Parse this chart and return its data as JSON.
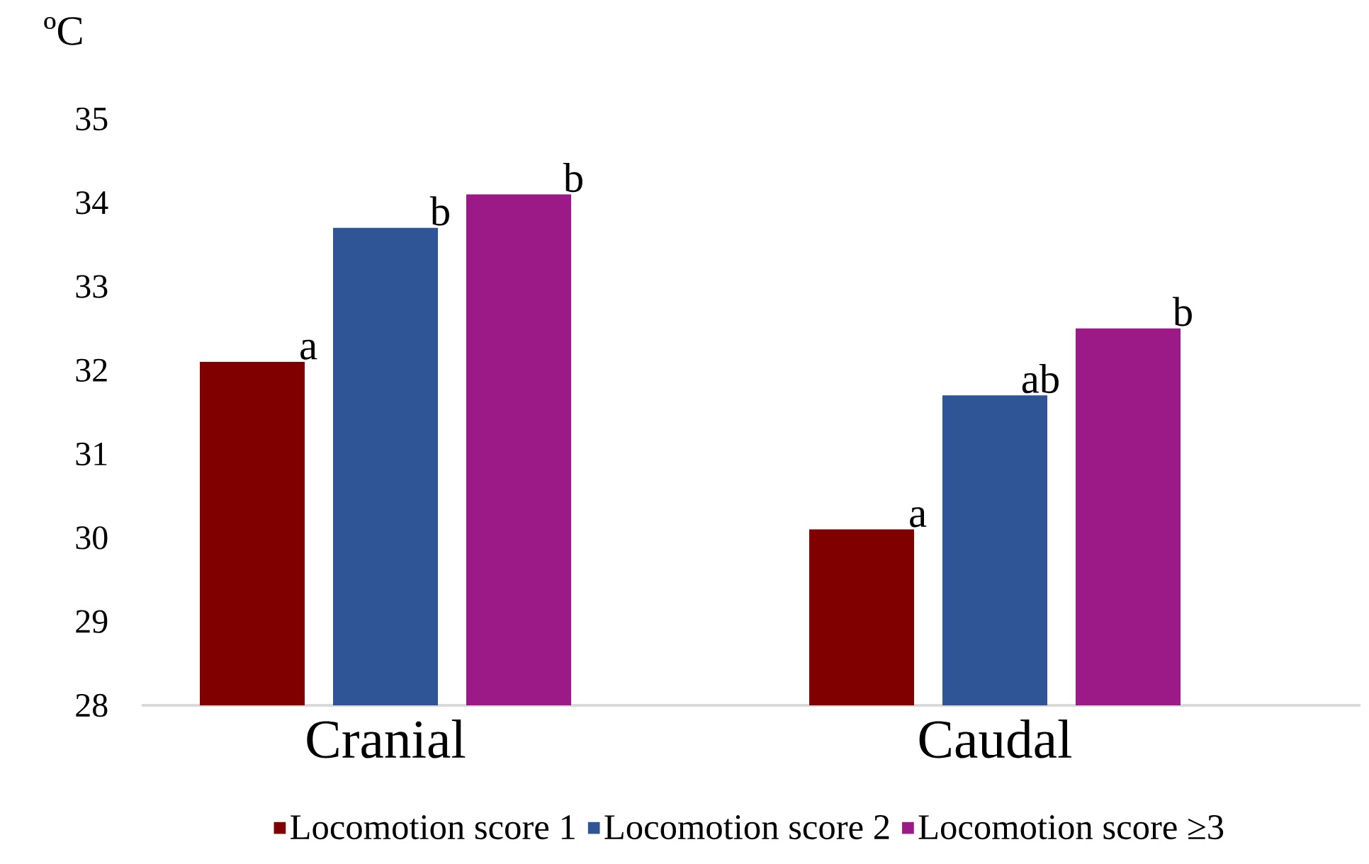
{
  "chart_data": {
    "type": "bar",
    "ylabel": "ºC",
    "categories": [
      "Cranial",
      "Caudal"
    ],
    "series": [
      {
        "name": "Locomotion score 1",
        "color": "#800000",
        "values": [
          32.1,
          30.1
        ],
        "value_labels": [
          "a",
          "a"
        ]
      },
      {
        "name": "Locomotion score 2",
        "color": "#2f5597",
        "values": [
          33.7,
          31.7
        ],
        "value_labels": [
          "b",
          "ab"
        ]
      },
      {
        "name": "Locomotion score ≥3",
        "color": "#9c1a87",
        "values": [
          34.1,
          32.5
        ],
        "value_labels": [
          "b",
          "b"
        ]
      }
    ],
    "ylim": [
      28,
      35
    ],
    "yticks": [
      28,
      29,
      30,
      31,
      32,
      33,
      34,
      35
    ],
    "grid": false,
    "legend": "bottom"
  }
}
